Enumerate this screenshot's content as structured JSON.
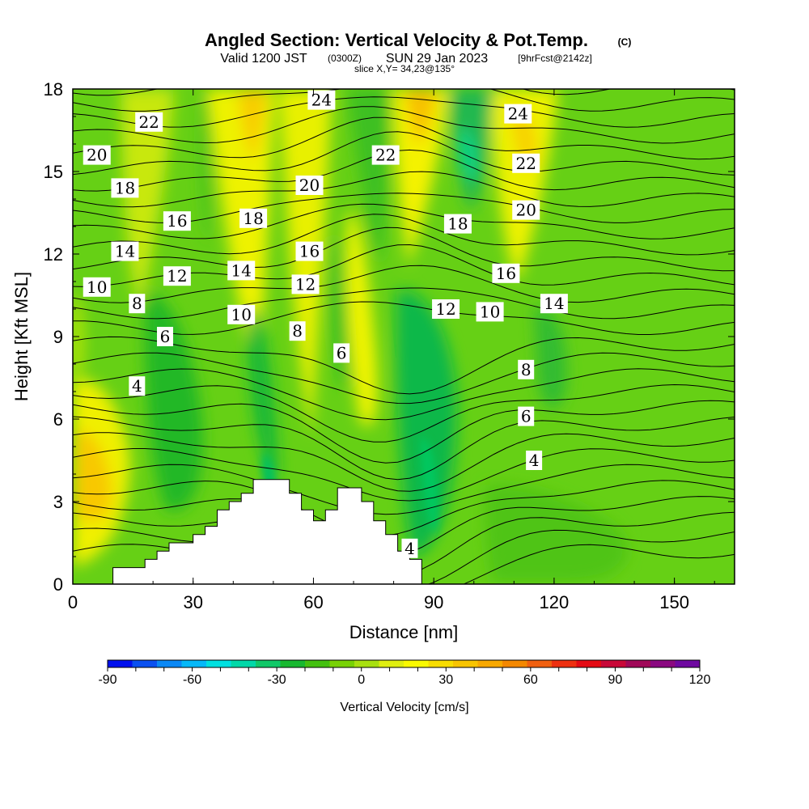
{
  "header": {
    "title": "Angled Section: Vertical Velocity & Pot.Temp.",
    "title_mark": "(C)",
    "valid_prefix": "Valid 1200 JST",
    "valid_zulu": "(0300Z)",
    "valid_date": "SUN 29 Jan 2023",
    "forecast": "[9hrFcst@2142z]",
    "slice": "slice X,Y= 34,23@135°"
  },
  "chart_data": {
    "type": "heatmap",
    "xlabel": "Distance [nm]",
    "ylabel": "Height [Kft MSL]",
    "xlim": [
      0,
      165
    ],
    "ylim": [
      0,
      18
    ],
    "x_ticks": [
      0,
      30,
      60,
      90,
      120,
      150
    ],
    "y_ticks": [
      0,
      3,
      6,
      9,
      12,
      15,
      18
    ],
    "colorbar": {
      "label": "Vertical Velocity [cm/s]",
      "min": -90,
      "max": 120,
      "step": 10,
      "tick_values": [
        -90,
        -60,
        -30,
        0,
        30,
        60,
        90,
        120
      ],
      "colors": [
        "#0010ee",
        "#0a50f0",
        "#0a88f5",
        "#05b8f8",
        "#00e0e0",
        "#00d8a8",
        "#10c868",
        "#18b830",
        "#44c010",
        "#78d205",
        "#a8e010",
        "#e0ee10",
        "#fafa00",
        "#f8dd00",
        "#f8c400",
        "#f8a800",
        "#f48800",
        "#f06010",
        "#ee3010",
        "#e40a14",
        "#c80838",
        "#a00858",
        "#8a0880",
        "#6e08a0"
      ]
    },
    "theta_contour_labels": [
      {
        "value": "4",
        "x": 16,
        "y": 7.2
      },
      {
        "value": "4",
        "x": 115,
        "y": 4.5
      },
      {
        "value": "4",
        "x": 84,
        "y": 1.3
      },
      {
        "value": "6",
        "x": 23,
        "y": 9.0
      },
      {
        "value": "6",
        "x": 67,
        "y": 8.4
      },
      {
        "value": "6",
        "x": 113,
        "y": 6.1
      },
      {
        "value": "8",
        "x": 16,
        "y": 10.2
      },
      {
        "value": "8",
        "x": 56,
        "y": 9.2
      },
      {
        "value": "8",
        "x": 113,
        "y": 7.8
      },
      {
        "value": "10",
        "x": 6,
        "y": 10.8
      },
      {
        "value": "10",
        "x": 42,
        "y": 9.8
      },
      {
        "value": "10",
        "x": 104,
        "y": 9.9
      },
      {
        "value": "12",
        "x": 26,
        "y": 11.2
      },
      {
        "value": "12",
        "x": 58,
        "y": 10.9
      },
      {
        "value": "12",
        "x": 93,
        "y": 10.0
      },
      {
        "value": "14",
        "x": 13,
        "y": 12.1
      },
      {
        "value": "14",
        "x": 42,
        "y": 11.4
      },
      {
        "value": "14",
        "x": 120,
        "y": 10.2
      },
      {
        "value": "16",
        "x": 26,
        "y": 13.2
      },
      {
        "value": "16",
        "x": 59,
        "y": 12.1
      },
      {
        "value": "16",
        "x": 108,
        "y": 11.3
      },
      {
        "value": "18",
        "x": 13,
        "y": 14.4
      },
      {
        "value": "18",
        "x": 45,
        "y": 13.3
      },
      {
        "value": "18",
        "x": 96,
        "y": 13.1
      },
      {
        "value": "20",
        "x": 6,
        "y": 15.6
      },
      {
        "value": "20",
        "x": 59,
        "y": 14.5
      },
      {
        "value": "20",
        "x": 113,
        "y": 13.6
      },
      {
        "value": "22",
        "x": 19,
        "y": 16.8
      },
      {
        "value": "22",
        "x": 78,
        "y": 15.6
      },
      {
        "value": "22",
        "x": 113,
        "y": 15.3
      },
      {
        "value": "24",
        "x": 62,
        "y": 17.6
      },
      {
        "value": "24",
        "x": 111,
        "y": 17.1
      }
    ],
    "terrain": {
      "x": [
        10,
        15,
        18,
        21,
        24,
        27,
        30,
        33,
        36,
        39,
        42,
        45,
        48,
        51,
        54,
        57,
        60,
        63,
        66,
        69,
        72,
        75,
        78,
        81,
        84
      ],
      "height": [
        0.6,
        0.6,
        0.9,
        1.2,
        1.5,
        1.5,
        1.8,
        2.1,
        2.7,
        3.0,
        3.3,
        3.8,
        3.8,
        3.8,
        3.3,
        2.7,
        2.3,
        2.7,
        3.5,
        3.5,
        3.0,
        2.3,
        1.8,
        1.2,
        0.9
      ]
    }
  }
}
